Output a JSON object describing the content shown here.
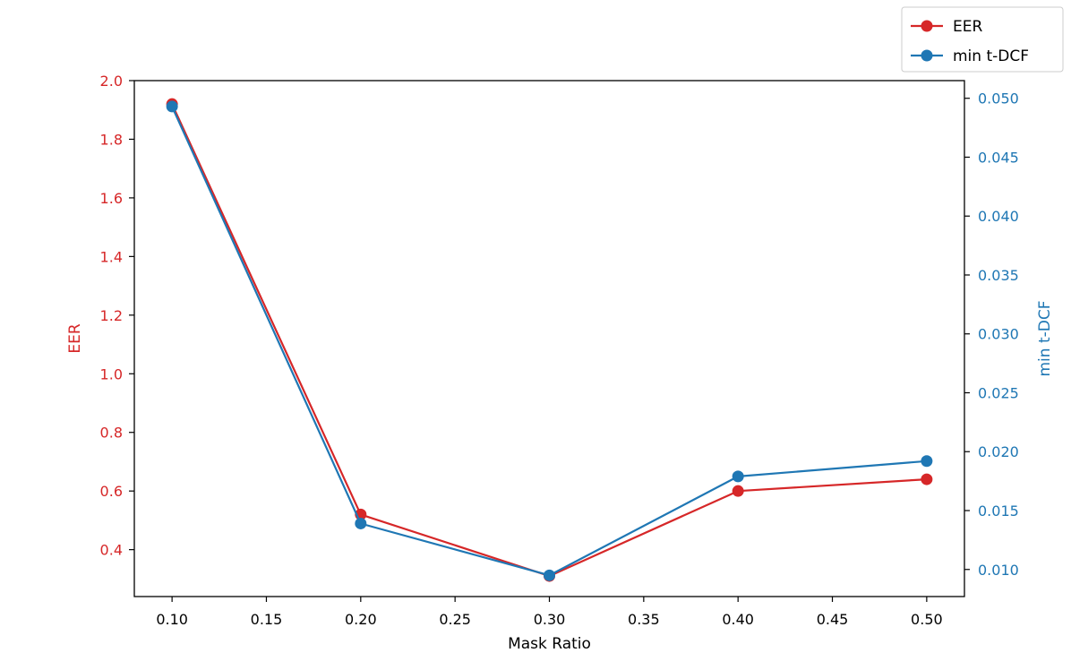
{
  "chart_data": {
    "type": "line",
    "x": [
      0.1,
      0.2,
      0.3,
      0.4,
      0.5
    ],
    "xlabel": "Mask Ratio",
    "xlim": [
      0.08,
      0.52
    ],
    "xticks": [
      "0.10",
      "0.15",
      "0.20",
      "0.25",
      "0.30",
      "0.35",
      "0.40",
      "0.45",
      "0.50"
    ],
    "grid": false,
    "legend": {
      "location": "top-right, outside plot area"
    },
    "series": [
      {
        "name": "EER",
        "axis": "left",
        "color": "#d62728",
        "marker": "circle",
        "values": [
          1.92,
          0.52,
          0.31,
          0.6,
          0.64
        ]
      },
      {
        "name": "min t-DCF",
        "axis": "right",
        "color": "#1f77b4",
        "marker": "circle",
        "values": [
          0.0493,
          0.0139,
          0.0095,
          0.0179,
          0.0192
        ]
      }
    ],
    "left_axis": {
      "label": "EER",
      "color": "#d62728",
      "ylim": [
        0.24,
        2.0
      ],
      "ticks": [
        "0.4",
        "0.6",
        "0.8",
        "1.0",
        "1.2",
        "1.4",
        "1.6",
        "1.8",
        "2.0"
      ]
    },
    "right_axis": {
      "label": "min t-DCF",
      "color": "#1f77b4",
      "ylim": [
        0.0077,
        0.0515
      ],
      "ticks": [
        "0.010",
        "0.015",
        "0.020",
        "0.025",
        "0.030",
        "0.035",
        "0.040",
        "0.045",
        "0.050"
      ]
    }
  }
}
